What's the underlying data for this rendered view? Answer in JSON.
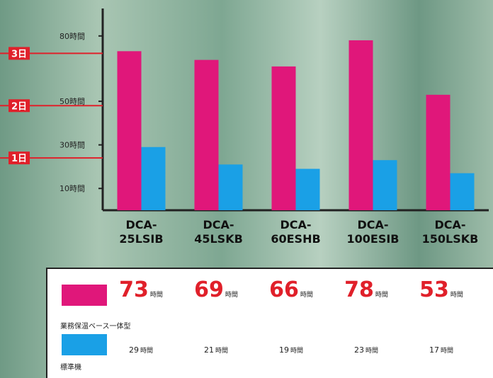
{
  "chart_data": {
    "type": "bar",
    "categories": [
      "DCA-25LSIB",
      "DCA-45LSKB",
      "DCA-60ESHB",
      "DCA-100ESIB",
      "DCA-150LSKB"
    ],
    "series": [
      {
        "name": "業務保温ベース一体型",
        "color": "#e0177a",
        "values": [
          73,
          69,
          66,
          78,
          53
        ],
        "value_labels": [
          "73",
          "69",
          "66",
          "78",
          "53"
        ]
      },
      {
        "name": "標準機",
        "color": "#1aa0e6",
        "values": [
          29,
          21,
          19,
          23,
          17
        ],
        "value_labels": [
          "29",
          "21",
          "19",
          "23",
          "17"
        ]
      }
    ],
    "unit": "時間",
    "ylim": [
      0,
      90
    ],
    "yticks": [
      {
        "value": 10,
        "label": "10時間"
      },
      {
        "value": 30,
        "label": "30時間"
      },
      {
        "value": 50,
        "label": "50時間"
      },
      {
        "value": 80,
        "label": "80時間"
      }
    ],
    "day_markers": [
      {
        "value": 72,
        "label": "3日"
      },
      {
        "value": 48,
        "label": "2日"
      },
      {
        "value": 24,
        "label": "1日"
      }
    ],
    "marker_color": "#e0202a"
  }
}
